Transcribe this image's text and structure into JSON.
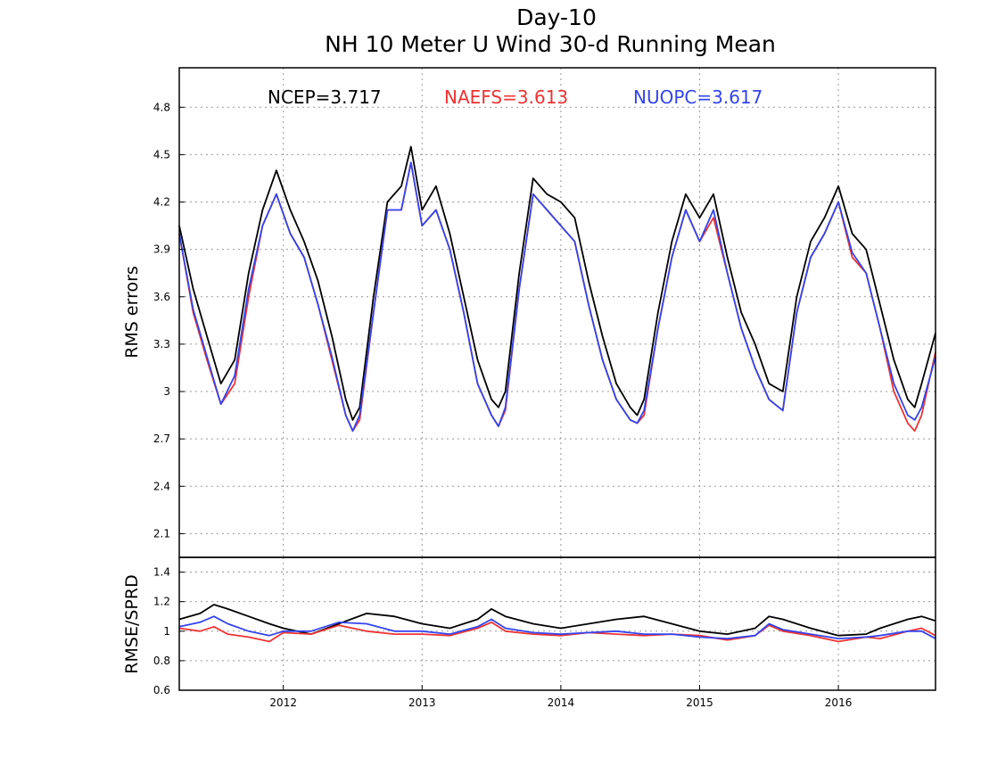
{
  "chart_data": [
    {
      "type": "line",
      "title_line1": "Day-10",
      "title_line2": "NH 10 Meter U Wind 30-d Running Mean",
      "ylabel": "RMS errors",
      "xlim": [
        2011.25,
        2016.7
      ],
      "ylim": [
        1.95,
        5.05
      ],
      "yticks": [
        "2.1",
        "2.4",
        "2.7",
        "3",
        "3.3",
        "3.6",
        "3.9",
        "4.2",
        "4.5",
        "4.8"
      ],
      "series": [
        {
          "name": "NCEP",
          "stat": "NCEP=3.717",
          "color": "#000000",
          "x": [
            2011.25,
            2011.35,
            2011.45,
            2011.55,
            2011.65,
            2011.75,
            2011.85,
            2011.95,
            2012.05,
            2012.15,
            2012.25,
            2012.35,
            2012.45,
            2012.5,
            2012.55,
            2012.65,
            2012.75,
            2012.85,
            2012.92,
            2013.0,
            2013.1,
            2013.2,
            2013.3,
            2013.4,
            2013.5,
            2013.55,
            2013.6,
            2013.7,
            2013.8,
            2013.9,
            2014.0,
            2014.1,
            2014.2,
            2014.3,
            2014.4,
            2014.5,
            2014.55,
            2014.6,
            2014.7,
            2014.8,
            2014.9,
            2015.0,
            2015.1,
            2015.2,
            2015.3,
            2015.4,
            2015.5,
            2015.6,
            2015.7,
            2015.8,
            2015.9,
            2016.0,
            2016.1,
            2016.2,
            2016.3,
            2016.4,
            2016.5,
            2016.55,
            2016.6,
            2016.7
          ],
          "y": [
            4.05,
            3.65,
            3.35,
            3.05,
            3.2,
            3.75,
            4.15,
            4.4,
            4.15,
            3.95,
            3.7,
            3.35,
            2.95,
            2.82,
            2.9,
            3.6,
            4.2,
            4.3,
            4.55,
            4.15,
            4.3,
            4.0,
            3.6,
            3.2,
            2.95,
            2.9,
            3.0,
            3.75,
            4.35,
            4.25,
            4.2,
            4.1,
            3.7,
            3.35,
            3.05,
            2.9,
            2.85,
            2.95,
            3.5,
            3.95,
            4.25,
            4.1,
            4.25,
            3.85,
            3.5,
            3.3,
            3.05,
            3.0,
            3.6,
            3.95,
            4.1,
            4.3,
            4.0,
            3.9,
            3.55,
            3.2,
            2.95,
            2.9,
            3.05,
            3.37
          ]
        },
        {
          "name": "NAEFS",
          "stat": "NAEFS=3.613",
          "color": "#ee3333",
          "x": [
            2011.25,
            2011.35,
            2011.45,
            2011.55,
            2011.65,
            2011.75,
            2011.85,
            2011.95,
            2012.05,
            2012.15,
            2012.25,
            2012.35,
            2012.45,
            2012.5,
            2012.55,
            2012.65,
            2012.75,
            2012.85,
            2012.92,
            2013.0,
            2013.1,
            2013.2,
            2013.3,
            2013.4,
            2013.5,
            2013.55,
            2013.6,
            2013.7,
            2013.8,
            2013.9,
            2014.0,
            2014.1,
            2014.2,
            2014.3,
            2014.4,
            2014.5,
            2014.55,
            2014.6,
            2014.7,
            2014.8,
            2014.9,
            2015.0,
            2015.1,
            2015.2,
            2015.3,
            2015.4,
            2015.5,
            2015.6,
            2015.7,
            2015.8,
            2015.9,
            2016.0,
            2016.1,
            2016.2,
            2016.3,
            2016.4,
            2016.5,
            2016.55,
            2016.6,
            2016.7
          ],
          "y": [
            4.0,
            3.5,
            3.2,
            2.92,
            3.05,
            3.6,
            4.05,
            4.25,
            4.0,
            3.85,
            3.55,
            3.2,
            2.85,
            2.75,
            2.82,
            3.5,
            4.15,
            4.15,
            4.45,
            4.05,
            4.15,
            3.9,
            3.5,
            3.05,
            2.85,
            2.78,
            2.88,
            3.65,
            4.25,
            4.15,
            4.05,
            3.95,
            3.55,
            3.2,
            2.95,
            2.82,
            2.8,
            2.85,
            3.4,
            3.85,
            4.15,
            3.95,
            4.1,
            3.75,
            3.4,
            3.15,
            2.95,
            2.88,
            3.5,
            3.85,
            4.0,
            4.2,
            3.85,
            3.75,
            3.4,
            3.0,
            2.8,
            2.75,
            2.85,
            3.25
          ]
        },
        {
          "name": "NUOPC",
          "stat": "NUOPC=3.617",
          "color": "#3344ee",
          "x": [
            2011.25,
            2011.35,
            2011.45,
            2011.55,
            2011.65,
            2011.75,
            2011.85,
            2011.95,
            2012.05,
            2012.15,
            2012.25,
            2012.35,
            2012.45,
            2012.5,
            2012.55,
            2012.65,
            2012.75,
            2012.85,
            2012.92,
            2013.0,
            2013.1,
            2013.2,
            2013.3,
            2013.4,
            2013.5,
            2013.55,
            2013.6,
            2013.7,
            2013.8,
            2013.9,
            2014.0,
            2014.1,
            2014.2,
            2014.3,
            2014.4,
            2014.5,
            2014.55,
            2014.6,
            2014.7,
            2014.8,
            2014.9,
            2015.0,
            2015.1,
            2015.2,
            2015.3,
            2015.4,
            2015.5,
            2015.6,
            2015.7,
            2015.8,
            2015.9,
            2016.0,
            2016.1,
            2016.2,
            2016.3,
            2016.4,
            2016.5,
            2016.55,
            2016.6,
            2016.7
          ],
          "y": [
            4.0,
            3.52,
            3.22,
            2.92,
            3.1,
            3.65,
            4.05,
            4.25,
            4.0,
            3.85,
            3.55,
            3.22,
            2.85,
            2.75,
            2.85,
            3.5,
            4.15,
            4.15,
            4.45,
            4.05,
            4.15,
            3.9,
            3.5,
            3.05,
            2.85,
            2.78,
            2.9,
            3.65,
            4.25,
            4.15,
            4.05,
            3.95,
            3.55,
            3.2,
            2.95,
            2.82,
            2.8,
            2.88,
            3.4,
            3.85,
            4.15,
            3.95,
            4.15,
            3.75,
            3.4,
            3.15,
            2.95,
            2.88,
            3.5,
            3.85,
            4.0,
            4.2,
            3.88,
            3.75,
            3.4,
            3.05,
            2.85,
            2.82,
            2.9,
            3.22
          ]
        }
      ]
    },
    {
      "type": "line",
      "ylabel": "RMSE/SPRD",
      "xlim": [
        2011.25,
        2016.7
      ],
      "ylim": [
        0.6,
        1.5
      ],
      "yticks": [
        "0.6",
        "0.8",
        "1",
        "1.2",
        "1.4"
      ],
      "xticks": [
        "2012",
        "2013",
        "2014",
        "2015",
        "2016"
      ],
      "series": [
        {
          "name": "NCEP",
          "color": "#000000",
          "x": [
            2011.25,
            2011.4,
            2011.5,
            2011.6,
            2011.75,
            2011.9,
            2012.0,
            2012.2,
            2012.4,
            2012.6,
            2012.8,
            2013.0,
            2013.2,
            2013.4,
            2013.5,
            2013.6,
            2013.8,
            2014.0,
            2014.2,
            2014.4,
            2014.6,
            2014.8,
            2015.0,
            2015.2,
            2015.4,
            2015.5,
            2015.6,
            2015.8,
            2016.0,
            2016.2,
            2016.3,
            2016.5,
            2016.6,
            2016.7
          ],
          "y": [
            1.08,
            1.12,
            1.18,
            1.15,
            1.1,
            1.05,
            1.02,
            0.98,
            1.05,
            1.12,
            1.1,
            1.05,
            1.02,
            1.08,
            1.15,
            1.1,
            1.05,
            1.02,
            1.05,
            1.08,
            1.1,
            1.05,
            1.0,
            0.98,
            1.02,
            1.1,
            1.08,
            1.02,
            0.97,
            0.98,
            1.02,
            1.08,
            1.1,
            1.07
          ]
        },
        {
          "name": "NAEFS",
          "color": "#ee3333",
          "x": [
            2011.25,
            2011.4,
            2011.5,
            2011.6,
            2011.75,
            2011.9,
            2012.0,
            2012.2,
            2012.4,
            2012.6,
            2012.8,
            2013.0,
            2013.2,
            2013.4,
            2013.5,
            2013.6,
            2013.8,
            2014.0,
            2014.2,
            2014.4,
            2014.6,
            2014.8,
            2015.0,
            2015.2,
            2015.4,
            2015.5,
            2015.6,
            2015.8,
            2016.0,
            2016.2,
            2016.3,
            2016.5,
            2016.6,
            2016.7
          ],
          "y": [
            1.02,
            1.0,
            1.03,
            0.98,
            0.96,
            0.93,
            0.99,
            0.98,
            1.04,
            1.0,
            0.98,
            0.98,
            0.97,
            1.02,
            1.06,
            1.0,
            0.98,
            0.97,
            0.99,
            0.98,
            0.97,
            0.98,
            0.97,
            0.94,
            0.97,
            1.04,
            1.0,
            0.97,
            0.93,
            0.96,
            0.95,
            1.0,
            1.02,
            0.97
          ]
        },
        {
          "name": "NUOPC",
          "color": "#3344ee",
          "x": [
            2011.25,
            2011.4,
            2011.5,
            2011.6,
            2011.75,
            2011.9,
            2012.0,
            2012.2,
            2012.4,
            2012.6,
            2012.8,
            2013.0,
            2013.2,
            2013.4,
            2013.5,
            2013.6,
            2013.8,
            2014.0,
            2014.2,
            2014.4,
            2014.6,
            2014.8,
            2015.0,
            2015.2,
            2015.4,
            2015.5,
            2015.6,
            2015.8,
            2016.0,
            2016.2,
            2016.3,
            2016.5,
            2016.6,
            2016.7
          ],
          "y": [
            1.03,
            1.06,
            1.1,
            1.05,
            1.0,
            0.97,
            1.0,
            1.0,
            1.06,
            1.05,
            1.0,
            1.0,
            0.98,
            1.03,
            1.08,
            1.02,
            0.99,
            0.98,
            0.99,
            1.0,
            0.98,
            0.98,
            0.96,
            0.95,
            0.97,
            1.05,
            1.01,
            0.98,
            0.95,
            0.96,
            0.97,
            1.0,
            1.0,
            0.95
          ]
        }
      ]
    }
  ]
}
